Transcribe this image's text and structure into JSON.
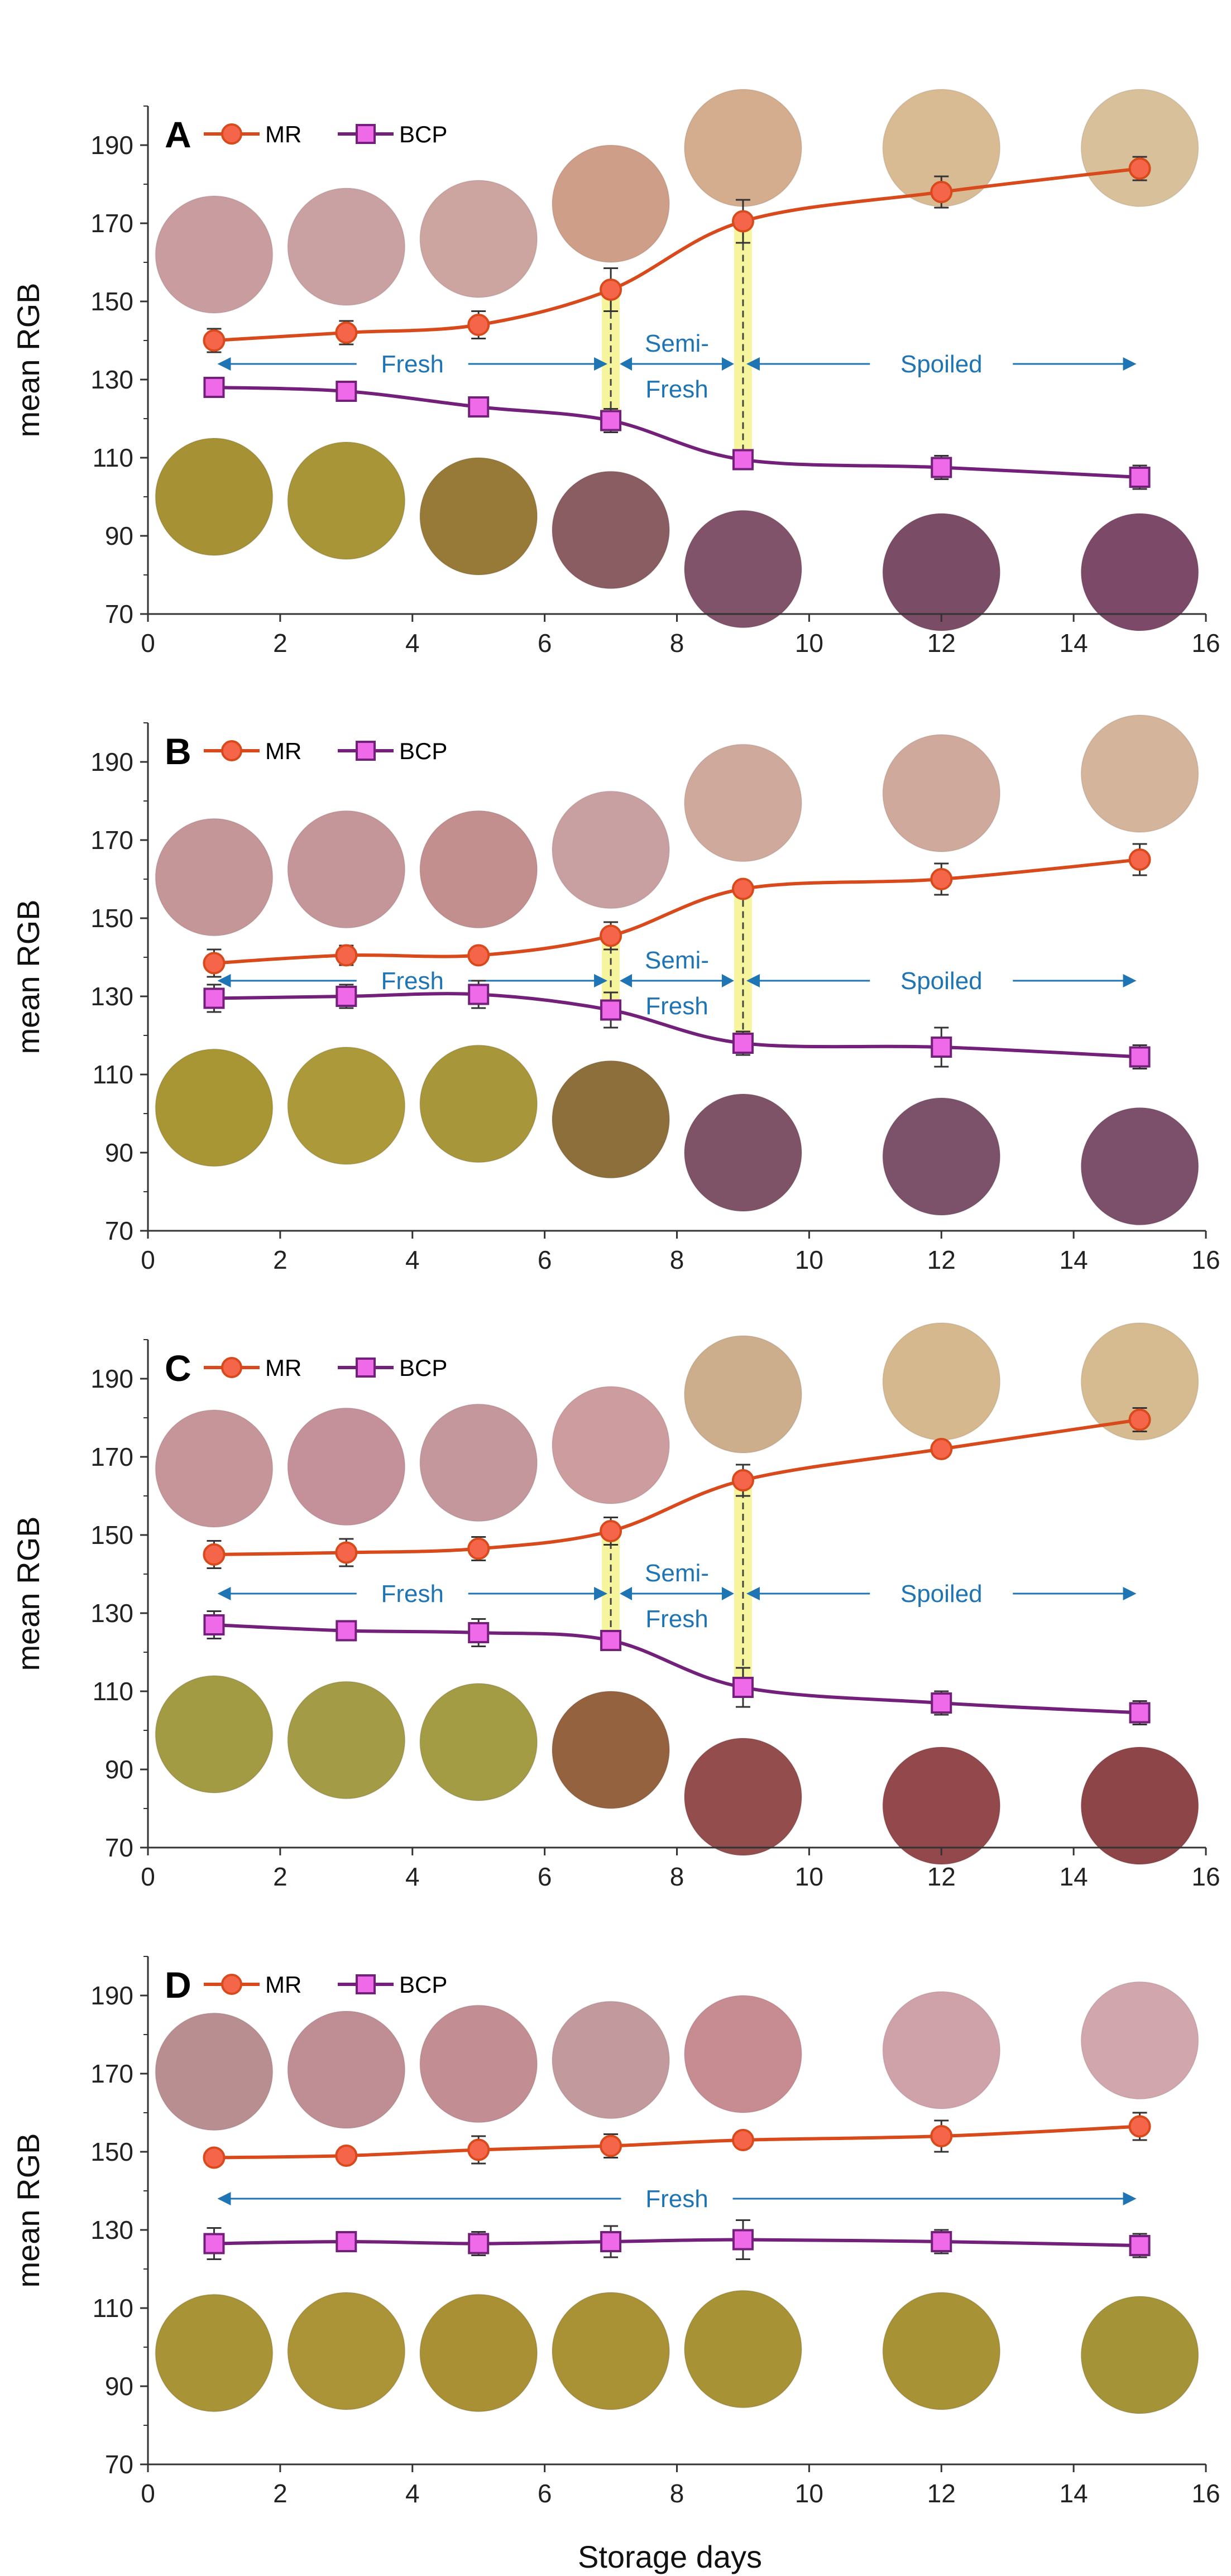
{
  "chart_data": {
    "type": "line",
    "xlabel": "Storage days",
    "ylabel": "mean RGB",
    "xlim": [
      0,
      16
    ],
    "ylim": [
      70,
      200
    ],
    "xticks": [
      "0",
      "2",
      "4",
      "6",
      "8",
      "10",
      "12",
      "14",
      "16"
    ],
    "yticks": [
      "70",
      "90",
      "110",
      "130",
      "150",
      "170",
      "190"
    ],
    "x": [
      1,
      3,
      5,
      7,
      9,
      12,
      15
    ],
    "colors": {
      "MR": "#d84a1b",
      "MR_fill": "#f4654a",
      "BCP": "#72207a",
      "BCP_fill": "#ef6ae8",
      "arrow": "#1f74b4",
      "highlight": "#f6f59e"
    },
    "panels": [
      {
        "label": "A",
        "series": [
          {
            "name": "MR",
            "values": [
              140,
              142,
              144,
              153,
              170.5,
              178,
              184
            ],
            "errors": [
              3,
              3,
              3.5,
              5.5,
              5.5,
              4,
              3
            ]
          },
          {
            "name": "BCP",
            "values": [
              128,
              127,
              123,
              119.5,
              109.5,
              107.5,
              105
            ],
            "errors": [
              2.5,
              2,
              2,
              3,
              2.5,
              3,
              3
            ]
          }
        ],
        "phases": [
          {
            "label": "Fresh",
            "x_start": 1,
            "x_end": 7
          },
          {
            "label": "Semi-|Fresh",
            "x_start": 7,
            "x_end": 9
          },
          {
            "label": "Spoiled",
            "x_start": 9,
            "x_end": 15
          }
        ],
        "arrow_y": 134,
        "highlights": [
          7,
          9
        ],
        "swatches_top": [
          "#c99da0",
          "#caa1a2",
          "#cca4a0",
          "#cf9e88",
          "#d3ad8d",
          "#d9bb93",
          "#d8c09b"
        ],
        "swatches_bottom": [
          "#a69234",
          "#a89537",
          "#987a38",
          "#8a5d62",
          "#81536a",
          "#7b4c66",
          "#7c4a68"
        ]
      },
      {
        "label": "B",
        "series": [
          {
            "name": "MR",
            "values": [
              138.5,
              140.5,
              140.5,
              145.5,
              157.5,
              160,
              165
            ],
            "errors": [
              3.5,
              2.5,
              2,
              3.5,
              2,
              4,
              4
            ]
          },
          {
            "name": "BCP",
            "values": [
              129.5,
              130,
              130.5,
              126.5,
              118,
              117,
              114.5
            ],
            "errors": [
              3.5,
              3,
              3.5,
              4.5,
              3,
              5,
              3
            ]
          }
        ],
        "phases": [
          {
            "label": "Fresh",
            "x_start": 1,
            "x_end": 7
          },
          {
            "label": "Semi-|Fresh",
            "x_start": 7,
            "x_end": 9
          },
          {
            "label": "Spoiled",
            "x_start": 9,
            "x_end": 15
          }
        ],
        "arrow_y": 134,
        "highlights": [
          7,
          9
        ],
        "swatches_top": [
          "#c49698",
          "#c4969a",
          "#c28e8e",
          "#c9a0a2",
          "#cfaa9c",
          "#cfa99b",
          "#d4b49a"
        ],
        "swatches_bottom": [
          "#a89634",
          "#ac9a3a",
          "#a8963a",
          "#8d6f3c",
          "#7f5367",
          "#7c526a",
          "#7c4f6a"
        ]
      },
      {
        "label": "C",
        "series": [
          {
            "name": "MR",
            "values": [
              145,
              145.5,
              146.5,
              151,
              164,
              172,
              179.5
            ],
            "errors": [
              3.5,
              3.5,
              3,
              3.5,
              4,
              2,
              3
            ]
          },
          {
            "name": "BCP",
            "values": [
              127,
              125.5,
              125,
              123,
              111,
              107,
              104.5
            ],
            "errors": [
              3.5,
              2.5,
              3.5,
              2.5,
              5,
              3,
              3
            ]
          }
        ],
        "phases": [
          {
            "label": "Fresh",
            "x_start": 1,
            "x_end": 7
          },
          {
            "label": "Semi-|Fresh",
            "x_start": 7,
            "x_end": 9
          },
          {
            "label": "Spoiled",
            "x_start": 9,
            "x_end": 15
          }
        ],
        "arrow_y": 135,
        "highlights": [
          7,
          9
        ],
        "swatches_top": [
          "#c69599",
          "#c4919a",
          "#c4979c",
          "#cd9c9e",
          "#ccae8c",
          "#d5b88e",
          "#d6bb90"
        ],
        "swatches_bottom": [
          "#a39a44",
          "#a49b46",
          "#a49b45",
          "#95623f",
          "#924d4c",
          "#93484c",
          "#8e4548"
        ]
      },
      {
        "label": "D",
        "series": [
          {
            "name": "MR",
            "values": [
              148.5,
              149,
              150.5,
              151.5,
              153,
              154,
              156.5
            ],
            "errors": [
              1.5,
              2,
              3.5,
              3,
              2,
              4,
              3.5
            ]
          },
          {
            "name": "BCP",
            "values": [
              126.5,
              127,
              126.5,
              127,
              127.5,
              127,
              126
            ],
            "errors": [
              4,
              2,
              3,
              4,
              5,
              3,
              3
            ]
          }
        ],
        "phases": [
          {
            "label": "Fresh",
            "x_start": 1,
            "x_end": 15
          }
        ],
        "arrow_y": 138,
        "highlights": [],
        "swatches_top": [
          "#b98e91",
          "#bf8d94",
          "#c28d93",
          "#c29a9d",
          "#c68c92",
          "#cfa2aa",
          "#d1a6ac"
        ],
        "swatches_bottom": [
          "#a89336",
          "#ab9338",
          "#a99035",
          "#a99136",
          "#a79235",
          "#a89236",
          "#a59337"
        ]
      }
    ]
  }
}
